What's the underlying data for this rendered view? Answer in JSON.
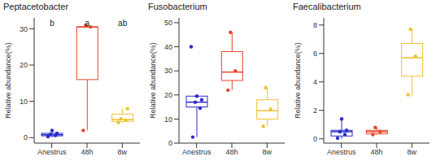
{
  "chart_data": [
    {
      "type": "box",
      "title": "Peptacetobacter",
      "y_label": "Relative abundance(%)",
      "categories": [
        "Anestrus",
        "48h",
        "8w"
      ],
      "colors": [
        "#2b2bcc",
        "#e8452c",
        "#f2c12e"
      ],
      "ylim": [
        -1.5,
        33
      ],
      "yticks": [
        0,
        10,
        20,
        30
      ],
      "annotations": [
        "b",
        "a",
        "ab"
      ],
      "boxes": [
        {
          "min": 0.1,
          "q1": 0.5,
          "median": 0.8,
          "q3": 1.2,
          "max": 2,
          "points": [
            0.3,
            0.6,
            0.9,
            1.2,
            2
          ]
        },
        {
          "min": 2,
          "q1": 16,
          "median": 30.5,
          "q3": 30.5,
          "max": 31,
          "points": [
            2,
            30.5,
            31
          ]
        },
        {
          "min": 4,
          "q1": 4.5,
          "median": 5,
          "q3": 6.5,
          "max": 8,
          "points": [
            4.2,
            4.8,
            5.2,
            8
          ]
        }
      ]
    },
    {
      "type": "box",
      "title": "Fusobacterium",
      "y_label": "Relative abundance(%)",
      "categories": [
        "Anestrus",
        "48h",
        "8w"
      ],
      "colors": [
        "#2b2bcc",
        "#e8452c",
        "#f2c12e"
      ],
      "ylim": [
        0,
        52
      ],
      "yticks": [
        0,
        10,
        20,
        30,
        40,
        50
      ],
      "boxes": [
        {
          "min": 2.5,
          "q1": 15,
          "median": 17,
          "q3": 19.5,
          "max": 20,
          "points": [
            2.5,
            14.5,
            17,
            18,
            19.5,
            40
          ]
        },
        {
          "min": 22,
          "q1": 26,
          "median": 29.5,
          "q3": 38,
          "max": 46,
          "points": [
            22,
            30,
            46
          ]
        },
        {
          "min": 7,
          "q1": 10,
          "median": 13.5,
          "q3": 18,
          "max": 23,
          "points": [
            7,
            14,
            23
          ]
        }
      ]
    },
    {
      "type": "box",
      "title": "Faecalibacterium",
      "y_label": "Relative abundance(%)",
      "categories": [
        "Anestrus",
        "48h",
        "8w"
      ],
      "colors": [
        "#2b2bcc",
        "#e8452c",
        "#f2c12e"
      ],
      "ylim": [
        -0.3,
        8.5
      ],
      "yticks": [
        0,
        2,
        4,
        6,
        8
      ],
      "boxes": [
        {
          "min": 0,
          "q1": 0.2,
          "median": 0.5,
          "q3": 0.6,
          "max": 1.4,
          "points": [
            0.05,
            0.3,
            0.5,
            0.6,
            1.4
          ]
        },
        {
          "min": 0.3,
          "q1": 0.35,
          "median": 0.5,
          "q3": 0.6,
          "max": 0.8,
          "points": [
            0.3,
            0.5,
            0.8
          ]
        },
        {
          "min": 3,
          "q1": 4.4,
          "median": 5.7,
          "q3": 6.7,
          "max": 7.7,
          "points": [
            3.1,
            5.8,
            7.7
          ]
        }
      ]
    }
  ]
}
